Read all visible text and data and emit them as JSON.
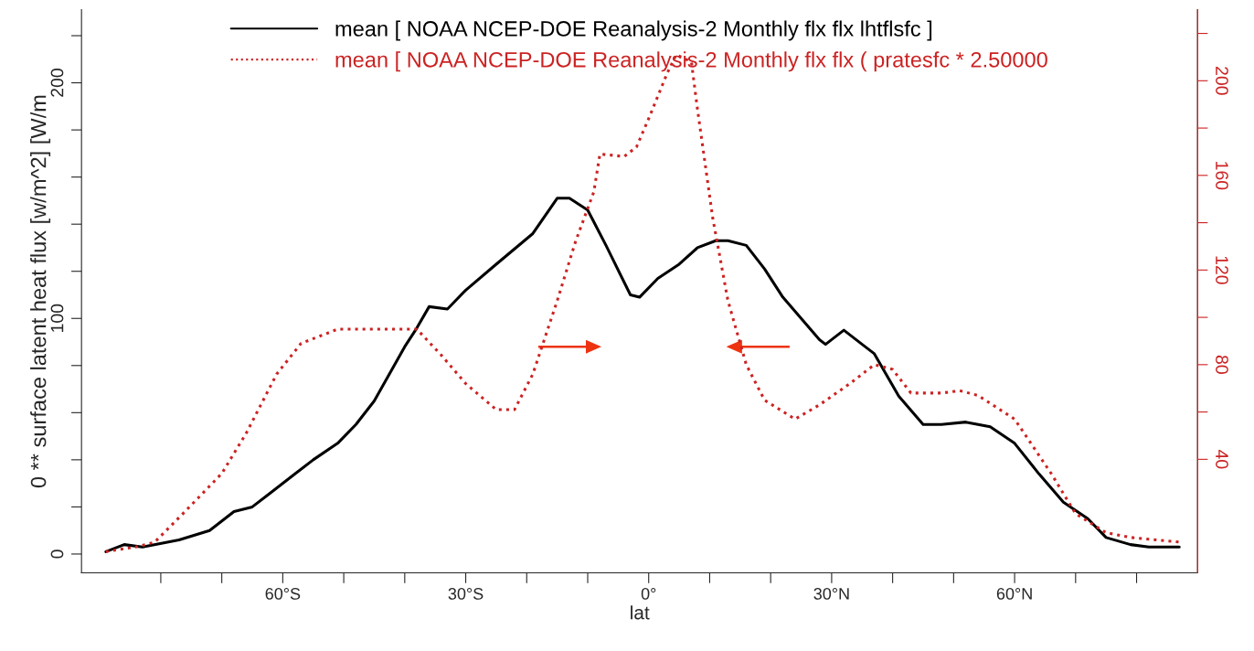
{
  "chart_data": {
    "type": "line",
    "xlabel": "lat",
    "ylabel": "0 ** surface latent heat flux [w/m^2] [W/m",
    "xlim": [
      -93,
      90
    ],
    "xticks": [
      {
        "value": -80,
        "label": null
      },
      {
        "value": -70,
        "label": null
      },
      {
        "value": -60,
        "label": "60°S"
      },
      {
        "value": -50,
        "label": null
      },
      {
        "value": -40,
        "label": null
      },
      {
        "value": -30,
        "label": "30°S"
      },
      {
        "value": -20,
        "label": null
      },
      {
        "value": -10,
        "label": null
      },
      {
        "value": 0,
        "label": "0°"
      },
      {
        "value": 10,
        "label": null
      },
      {
        "value": 20,
        "label": null
      },
      {
        "value": 30,
        "label": "30°N"
      },
      {
        "value": 40,
        "label": null
      },
      {
        "value": 50,
        "label": null
      },
      {
        "value": 60,
        "label": "60°N"
      },
      {
        "value": 70,
        "label": null
      },
      {
        "value": 80,
        "label": null
      }
    ],
    "ylim": [
      -8,
      231
    ],
    "yticks": [
      0,
      {
        "value": 20,
        "label": null
      },
      {
        "value": 40,
        "label": null
      },
      {
        "value": 60,
        "label": null
      },
      {
        "value": 80,
        "label": null
      },
      100,
      {
        "value": 120,
        "label": null
      },
      {
        "value": 140,
        "label": null
      },
      {
        "value": 160,
        "label": null
      },
      {
        "value": 180,
        "label": null
      },
      200,
      {
        "value": 220,
        "label": null
      }
    ],
    "y2lim": [
      -8,
      230
    ],
    "y2ticks": [
      40,
      {
        "value": 60,
        "label": null
      },
      80,
      {
        "value": 100,
        "label": null
      },
      120,
      {
        "value": 140,
        "label": null
      },
      160,
      {
        "value": 180,
        "label": null
      },
      200,
      {
        "value": 220,
        "label": null
      }
    ],
    "grid": false,
    "legend": "top",
    "marker": "none",
    "series": [
      {
        "name": "mean [ NOAA NCEP-DOE Reanalysis-2 Monthly flx flx lhtflsfc ]",
        "color": "#000000",
        "line_style": "solid",
        "x": [
          -89,
          -86,
          -83,
          -77,
          -72,
          -68,
          -65,
          -62,
          -58,
          -55,
          -51,
          -48,
          -45,
          -40,
          -38,
          -36,
          -33,
          -30,
          -25,
          -19,
          -15,
          -13,
          -10,
          -7,
          -3,
          -1.5,
          1.5,
          5,
          8,
          11,
          13,
          16,
          19,
          22,
          25,
          28,
          29,
          32,
          35,
          37,
          41,
          45,
          48,
          52,
          56,
          60,
          64,
          68,
          72,
          75,
          79,
          82,
          87
        ],
        "values": [
          1,
          4,
          3,
          6,
          10,
          18,
          20,
          26,
          34,
          40,
          47,
          55,
          65,
          88,
          96,
          105,
          104,
          112,
          123,
          136,
          151,
          151,
          146,
          131,
          110,
          109,
          117,
          123,
          130,
          133,
          133,
          131,
          121,
          109,
          100,
          91,
          89,
          95,
          89,
          85,
          67,
          55,
          55,
          56,
          54,
          47,
          34,
          22,
          15,
          7,
          4,
          3,
          3
        ]
      },
      {
        "name": "mean [ NOAA NCEP-DOE Reanalysis-2 Monthly flx flx ( pratesfc * 2.50000",
        "color": "#cc2222",
        "line_style": "dotted",
        "axis": "y2",
        "x": [
          -89,
          -84,
          -81,
          -76,
          -70,
          -66,
          -61,
          -57,
          -51,
          -45,
          -38,
          -34,
          -30,
          -25,
          -22,
          -19,
          -15,
          -12,
          -9,
          -8,
          -4,
          -2,
          0,
          3,
          4.5,
          7,
          8,
          10.5,
          13,
          16,
          19,
          24,
          28,
          33,
          37,
          40,
          43,
          48,
          51,
          54,
          60,
          66,
          70,
          75,
          79,
          87
        ],
        "values": [
          1,
          3,
          5,
          18,
          34,
          51,
          76,
          89,
          95,
          95,
          95,
          84,
          72,
          61,
          61,
          76,
          107,
          132,
          153,
          169,
          168,
          172,
          184,
          203,
          211,
          208,
          188,
          142,
          107,
          80,
          65,
          57,
          63,
          72,
          80,
          78,
          68,
          68,
          69,
          67,
          57,
          34,
          17,
          9,
          7,
          5
        ]
      }
    ]
  }
}
